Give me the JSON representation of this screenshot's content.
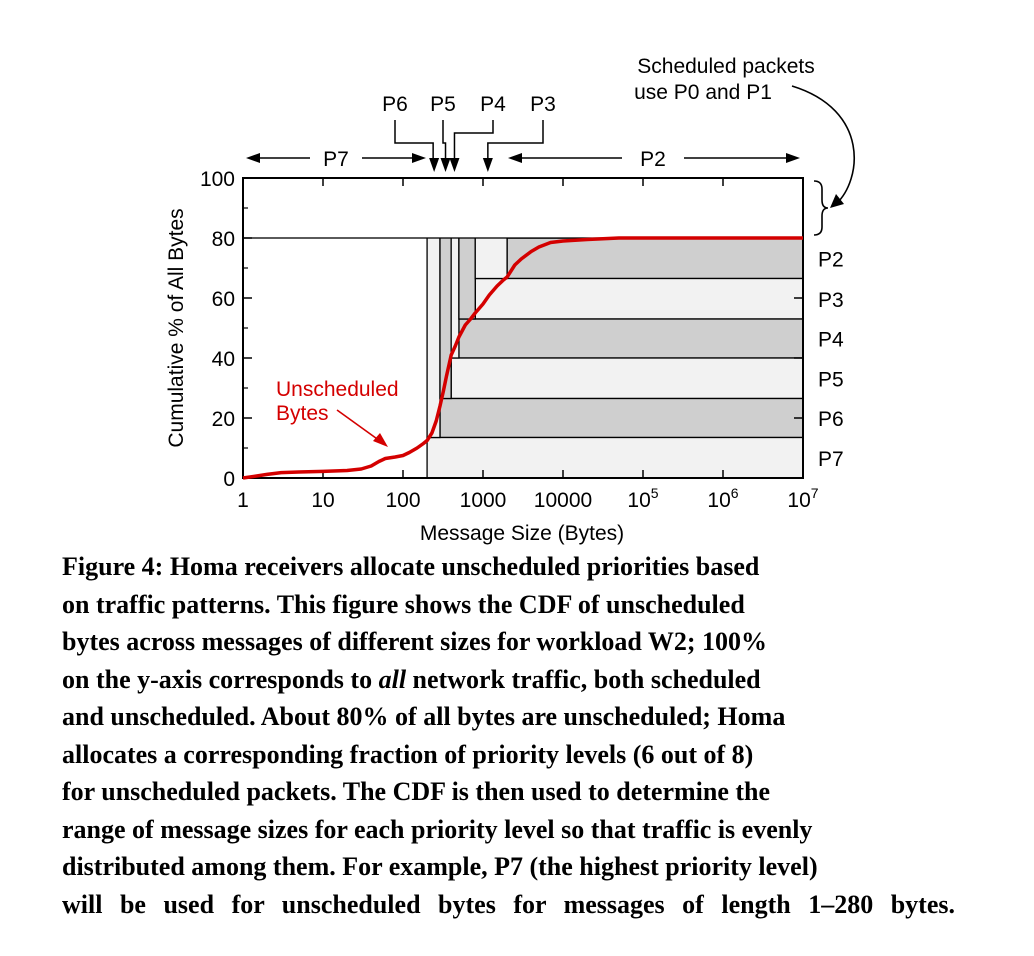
{
  "chart_data": {
    "type": "line",
    "title": "",
    "xlabel": "Message Size (Bytes)",
    "ylabel": "Cumulative % of All Bytes",
    "xscale": "log",
    "xlim": [
      1,
      10000000
    ],
    "ylim": [
      0,
      100
    ],
    "x_ticks": [
      {
        "value": 1,
        "label": "1"
      },
      {
        "value": 10,
        "label": "10"
      },
      {
        "value": 100,
        "label": "100"
      },
      {
        "value": 1000,
        "label": "1000"
      },
      {
        "value": 10000,
        "label": "10000"
      },
      {
        "value": 100000,
        "base": "10",
        "exp": "5"
      },
      {
        "value": 1000000,
        "base": "10",
        "exp": "6"
      },
      {
        "value": 10000000,
        "base": "10",
        "exp": "7"
      }
    ],
    "y_ticks": [
      {
        "value": 0,
        "label": "0"
      },
      {
        "value": 20,
        "label": "20"
      },
      {
        "value": 40,
        "label": "40"
      },
      {
        "value": 60,
        "label": "60"
      },
      {
        "value": 80,
        "label": "80"
      },
      {
        "value": 100,
        "label": "100"
      }
    ],
    "series": [
      {
        "color": "#d40000",
        "x": [
          1,
          2,
          3,
          5,
          10,
          20,
          30,
          40,
          50,
          60,
          80,
          100,
          120,
          150,
          180,
          200,
          230,
          260,
          290,
          320,
          350,
          400,
          450,
          500,
          600,
          700,
          800,
          1000,
          1200,
          1500,
          1800,
          2000,
          2500,
          3000,
          4000,
          5000,
          7000,
          10000,
          20000,
          50000,
          100000,
          1000000,
          10000000
        ],
        "y": [
          0,
          1.2,
          1.8,
          2,
          2.2,
          2.5,
          3,
          4,
          5.5,
          6.5,
          7,
          7.5,
          8.5,
          10,
          11.5,
          12.5,
          15,
          19,
          24,
          29,
          34,
          41,
          44,
          47,
          51,
          53,
          55,
          58,
          61,
          64,
          66,
          67,
          71,
          73,
          75.5,
          77,
          78.5,
          79,
          79.5,
          80,
          80,
          80,
          80
        ]
      }
    ],
    "unscheduled_bands": [
      {
        "label": "P2",
        "y_from": 66.5,
        "y_to": 80,
        "x_from": 2000
      },
      {
        "label": "P3",
        "y_from": 53,
        "y_to": 66.5,
        "x_from": 800
      },
      {
        "label": "P4",
        "y_from": 40,
        "y_to": 53,
        "x_from": 500
      },
      {
        "label": "P5",
        "y_from": 26.5,
        "y_to": 40,
        "x_from": 400
      },
      {
        "label": "P6",
        "y_from": 13.5,
        "y_to": 26.5,
        "x_from": 290
      },
      {
        "label": "P7",
        "y_from": 0,
        "y_to": 13.5,
        "x_from": 200
      }
    ],
    "scheduled_band": {
      "y_from": 80,
      "y_to": 100
    },
    "top_labels": [
      {
        "label": "P6",
        "x": 245,
        "pointer_x": 245
      },
      {
        "label": "P5",
        "x": 340,
        "pointer_x": 340
      },
      {
        "label": "P4",
        "x": 540,
        "pointer_x": 440
      },
      {
        "label": "P3",
        "x": 1150,
        "pointer_x": 1150
      }
    ],
    "range_labels": {
      "left": "P7",
      "right": "P2"
    },
    "annotations": {
      "scheduled_line1": "Scheduled packets",
      "scheduled_line2": "use P0 and P1",
      "unscheduled_line1": "Unscheduled",
      "unscheduled_line2": "Bytes"
    }
  },
  "caption": {
    "lines": [
      "Figure 4: Homa receivers allocate unscheduled priorities based",
      "on traffic patterns. This figure shows the CDF of unscheduled",
      "bytes across messages of different sizes for workload W2; 100%",
      "on the y-axis corresponds to",
      "all",
      "network traffic, both scheduled",
      "and unscheduled. About 80% of all bytes are unscheduled; Homa",
      "allocates a corresponding fraction of priority levels (6 out of 8)",
      "for unscheduled packets. The CDF is then used to determine the",
      "range of message sizes for each priority level so that traffic is evenly",
      "distributed among them. For example, P7 (the highest priority level)",
      "will be used for unscheduled bytes for messages of length 1–280 bytes."
    ]
  }
}
